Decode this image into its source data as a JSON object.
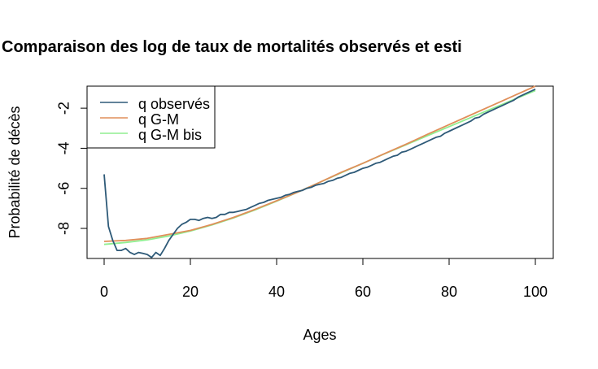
{
  "chart_data": {
    "type": "line",
    "title": "Comparaison des log de taux de mortalités observés et esti",
    "xlabel": "Ages",
    "ylabel": "Probabilité de décès",
    "xlim": [
      0,
      100
    ],
    "ylim": [
      -9.5,
      -0.9
    ],
    "x_ticks": [
      0,
      20,
      40,
      60,
      80,
      100
    ],
    "y_ticks": [
      -8,
      -6,
      -4,
      -2
    ],
    "legend_position": "top-left",
    "series": [
      {
        "name": "q observés",
        "color": "#2e5a78",
        "x": [
          0,
          1,
          2,
          3,
          4,
          5,
          6,
          7,
          8,
          9,
          10,
          11,
          12,
          13,
          14,
          15,
          16,
          17,
          18,
          19,
          20,
          21,
          22,
          23,
          24,
          25,
          26,
          27,
          28,
          29,
          30,
          31,
          32,
          33,
          34,
          35,
          36,
          37,
          38,
          39,
          40,
          41,
          42,
          43,
          44,
          45,
          46,
          47,
          48,
          49,
          50,
          51,
          52,
          53,
          54,
          55,
          56,
          57,
          58,
          59,
          60,
          61,
          62,
          63,
          64,
          65,
          66,
          67,
          68,
          69,
          70,
          71,
          72,
          73,
          74,
          75,
          76,
          77,
          78,
          79,
          80,
          81,
          82,
          83,
          84,
          85,
          86,
          87,
          88,
          89,
          90,
          91,
          92,
          93,
          94,
          95,
          96,
          97,
          98,
          99,
          100
        ],
        "y": [
          -5.3,
          -7.9,
          -8.6,
          -9.1,
          -9.1,
          -9.0,
          -9.2,
          -9.3,
          -9.2,
          -9.25,
          -9.3,
          -9.45,
          -9.2,
          -9.35,
          -9.0,
          -8.6,
          -8.3,
          -8.0,
          -7.8,
          -7.7,
          -7.55,
          -7.55,
          -7.6,
          -7.5,
          -7.45,
          -7.5,
          -7.45,
          -7.3,
          -7.3,
          -7.2,
          -7.2,
          -7.15,
          -7.1,
          -7.05,
          -6.95,
          -6.85,
          -6.75,
          -6.7,
          -6.6,
          -6.55,
          -6.5,
          -6.45,
          -6.35,
          -6.3,
          -6.2,
          -6.15,
          -6.1,
          -6.0,
          -5.95,
          -5.85,
          -5.8,
          -5.75,
          -5.65,
          -5.6,
          -5.5,
          -5.45,
          -5.35,
          -5.25,
          -5.2,
          -5.1,
          -5.0,
          -4.95,
          -4.85,
          -4.75,
          -4.7,
          -4.6,
          -4.5,
          -4.4,
          -4.35,
          -4.2,
          -4.15,
          -4.05,
          -3.95,
          -3.85,
          -3.75,
          -3.65,
          -3.55,
          -3.45,
          -3.4,
          -3.25,
          -3.15,
          -3.05,
          -2.95,
          -2.85,
          -2.75,
          -2.65,
          -2.5,
          -2.45,
          -2.3,
          -2.2,
          -2.1,
          -2.0,
          -1.9,
          -1.8,
          -1.7,
          -1.6,
          -1.45,
          -1.35,
          -1.25,
          -1.15,
          -1.05
        ]
      },
      {
        "name": "q G-M",
        "color": "#e08f5a",
        "x": [
          0,
          5,
          10,
          15,
          20,
          25,
          30,
          35,
          40,
          45,
          50,
          55,
          60,
          65,
          70,
          75,
          80,
          85,
          90,
          95,
          100
        ],
        "y": [
          -8.65,
          -8.6,
          -8.5,
          -8.3,
          -8.1,
          -7.8,
          -7.45,
          -7.05,
          -6.62,
          -6.18,
          -5.7,
          -5.2,
          -4.75,
          -4.27,
          -3.8,
          -3.3,
          -2.82,
          -2.34,
          -1.86,
          -1.38,
          -0.9
        ]
      },
      {
        "name": "q G-M bis",
        "color": "#90ee90",
        "x": [
          0,
          5,
          10,
          15,
          20,
          25,
          30,
          35,
          40,
          45,
          50,
          55,
          60,
          65,
          70,
          75,
          80,
          85,
          90,
          95,
          100
        ],
        "y": [
          -8.8,
          -8.7,
          -8.57,
          -8.38,
          -8.13,
          -7.83,
          -7.48,
          -7.08,
          -6.64,
          -6.18,
          -5.7,
          -5.22,
          -4.75,
          -4.28,
          -3.83,
          -3.37,
          -2.92,
          -2.47,
          -2.02,
          -1.57,
          -1.12
        ]
      }
    ]
  }
}
